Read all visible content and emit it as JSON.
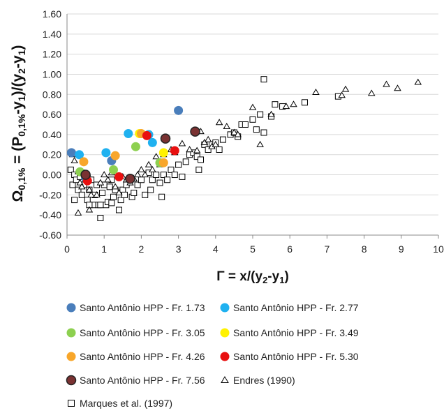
{
  "chart_data": {
    "type": "scatter",
    "xlabel": "Γ = x/(y₂-y₁)",
    "ylabel": "Ω0,1% = (P0,1%-y₁)/(y₂-y₁)",
    "ylabel_parts": {
      "omega": "Ω",
      "omega_sub": "0,1%",
      "eq": " = (P",
      "p_sub": "0,1%",
      "rest1": "-y",
      "sub1": "1",
      "rest2": ")/(y",
      "sub2": "2",
      "rest3": "-y",
      "sub3": "1",
      "rest4": ")"
    },
    "xlabel_parts": {
      "main": "Γ = x/(y",
      "sub2": "2",
      "mid": "-y",
      "sub1": "1",
      "end": ")"
    },
    "xlim": [
      0,
      10
    ],
    "ylim": [
      -0.6,
      1.6
    ],
    "x_ticks": [
      "0",
      "1",
      "2",
      "3",
      "4",
      "5",
      "6",
      "7",
      "8",
      "9",
      "10"
    ],
    "y_ticks": [
      "-0.60",
      "-0.40",
      "-0.20",
      "0.00",
      "0.20",
      "0.40",
      "0.60",
      "0.80",
      "1.00",
      "1.20",
      "1.40",
      "1.60"
    ],
    "grid": "horizontal",
    "legend_position": "bottom",
    "series": [
      {
        "name": "Santo Antônio HPP - Fr. 1.73",
        "marker": "circle",
        "color": "#4A7EBB",
        "x": [
          0.12,
          3.0,
          1.2,
          0.5
        ],
        "y": [
          0.22,
          0.64,
          0.14,
          -0.03
        ]
      },
      {
        "name": "Santo Antônio HPP - Fr. 2.77",
        "marker": "circle",
        "color": "#1FB1F0",
        "x": [
          0.33,
          1.05,
          1.65,
          2.2,
          2.3
        ],
        "y": [
          0.2,
          0.22,
          0.41,
          0.4,
          0.32
        ]
      },
      {
        "name": "Santo Antônio HPP - Fr. 3.05",
        "marker": "circle",
        "color": "#8DD050",
        "x": [
          1.85,
          1.25,
          2.5,
          0.35
        ],
        "y": [
          0.28,
          0.05,
          0.12,
          0.03
        ]
      },
      {
        "name": "Santo Antônio HPP - Fr. 3.49",
        "marker": "circle",
        "color": "#FFF200",
        "x": [
          2.6,
          1.95
        ],
        "y": [
          0.22,
          0.41
        ]
      },
      {
        "name": "Santo Antônio HPP - Fr. 4.26",
        "marker": "circle",
        "color": "#F8A62A",
        "x": [
          0.45,
          1.3,
          2.0,
          2.6
        ],
        "y": [
          0.13,
          0.19,
          0.41,
          0.12
        ]
      },
      {
        "name": "Santo Antônio HPP - Fr. 5.30",
        "marker": "circle",
        "color": "#E81010",
        "x": [
          2.15,
          2.9,
          1.4,
          0.55
        ],
        "y": [
          0.39,
          0.24,
          -0.02,
          -0.06
        ]
      },
      {
        "name": "Santo Antônio HPP - Fr. 7.56",
        "marker": "circle",
        "color": "#7A3232",
        "x": [
          2.65,
          3.45,
          1.7,
          0.5
        ],
        "y": [
          0.36,
          0.43,
          -0.04,
          0.0
        ]
      },
      {
        "name": "Endres (1990)",
        "marker": "triangle",
        "color": "#000000",
        "x": [
          0.15,
          0.2,
          0.3,
          0.35,
          0.4,
          0.5,
          0.55,
          0.6,
          0.65,
          0.8,
          0.9,
          1.0,
          1.1,
          1.2,
          1.3,
          1.5,
          1.6,
          1.7,
          1.8,
          1.9,
          2.0,
          2.1,
          2.2,
          2.3,
          2.5,
          2.6,
          2.8,
          2.9,
          3.1,
          3.3,
          3.5,
          3.7,
          3.8,
          3.9,
          4.0,
          4.1,
          4.3,
          4.5,
          4.6,
          5.0,
          5.2,
          5.5,
          5.9,
          6.1,
          6.7,
          7.4,
          7.5,
          8.2,
          8.6,
          8.9,
          9.45,
          3.6,
          2.4,
          1.4,
          0.6,
          0.3
        ],
        "y": [
          0.2,
          0.14,
          0.03,
          -0.08,
          -0.12,
          -0.05,
          0.01,
          -0.15,
          -0.2,
          -0.2,
          -0.08,
          0.0,
          -0.05,
          0.02,
          -0.12,
          -0.02,
          -0.05,
          -0.08,
          -0.04,
          0.0,
          0.05,
          0.0,
          0.1,
          0.05,
          0.1,
          0.2,
          0.25,
          0.22,
          0.31,
          0.25,
          0.24,
          0.32,
          0.35,
          0.28,
          0.3,
          0.52,
          0.48,
          0.42,
          0.4,
          0.67,
          0.3,
          0.6,
          0.68,
          0.7,
          0.82,
          0.79,
          0.85,
          0.81,
          0.9,
          0.86,
          0.92,
          0.43,
          0.18,
          -0.18,
          -0.35,
          -0.38
        ]
      },
      {
        "name": "Marques et al. (1997)",
        "marker": "square",
        "color": "#000000",
        "x": [
          0.1,
          0.15,
          0.2,
          0.25,
          0.3,
          0.35,
          0.4,
          0.45,
          0.5,
          0.55,
          0.6,
          0.65,
          0.7,
          0.75,
          0.8,
          0.85,
          0.9,
          0.95,
          1.0,
          1.05,
          1.1,
          1.15,
          1.2,
          1.25,
          1.3,
          1.4,
          1.45,
          1.5,
          1.55,
          1.6,
          1.7,
          1.75,
          1.8,
          1.9,
          2.0,
          2.1,
          2.2,
          2.25,
          2.3,
          2.4,
          2.5,
          2.55,
          2.6,
          2.7,
          2.8,
          2.9,
          3.0,
          3.1,
          3.2,
          3.3,
          3.4,
          3.5,
          3.55,
          3.6,
          3.7,
          3.8,
          3.9,
          4.0,
          4.1,
          4.2,
          4.4,
          4.5,
          4.6,
          4.7,
          4.8,
          5.0,
          5.1,
          5.2,
          5.3,
          5.5,
          5.6,
          5.8,
          6.4,
          7.3,
          5.3,
          0.2,
          0.6,
          0.9,
          1.2,
          0.4
        ],
        "y": [
          0.05,
          -0.1,
          0.0,
          -0.05,
          -0.15,
          -0.02,
          -0.2,
          -0.1,
          0.0,
          -0.25,
          -0.15,
          -0.05,
          -0.3,
          -0.2,
          -0.1,
          -0.3,
          -0.43,
          -0.18,
          -0.1,
          -0.3,
          -0.27,
          -0.12,
          -0.05,
          -0.22,
          -0.15,
          -0.35,
          -0.25,
          -0.15,
          -0.2,
          -0.1,
          -0.05,
          -0.22,
          -0.18,
          -0.1,
          -0.05,
          -0.2,
          0.02,
          -0.15,
          -0.05,
          0.0,
          -0.08,
          -0.22,
          0.0,
          -0.05,
          0.05,
          0.0,
          0.1,
          -0.02,
          0.13,
          0.2,
          0.22,
          0.18,
          0.05,
          0.15,
          0.3,
          0.25,
          0.3,
          0.32,
          0.25,
          0.35,
          0.4,
          0.42,
          0.38,
          0.5,
          0.5,
          0.55,
          0.45,
          0.6,
          0.42,
          0.58,
          0.7,
          0.68,
          0.72,
          0.78,
          0.95,
          -0.25,
          -0.3,
          -0.3,
          -0.28,
          0.02
        ]
      }
    ]
  }
}
